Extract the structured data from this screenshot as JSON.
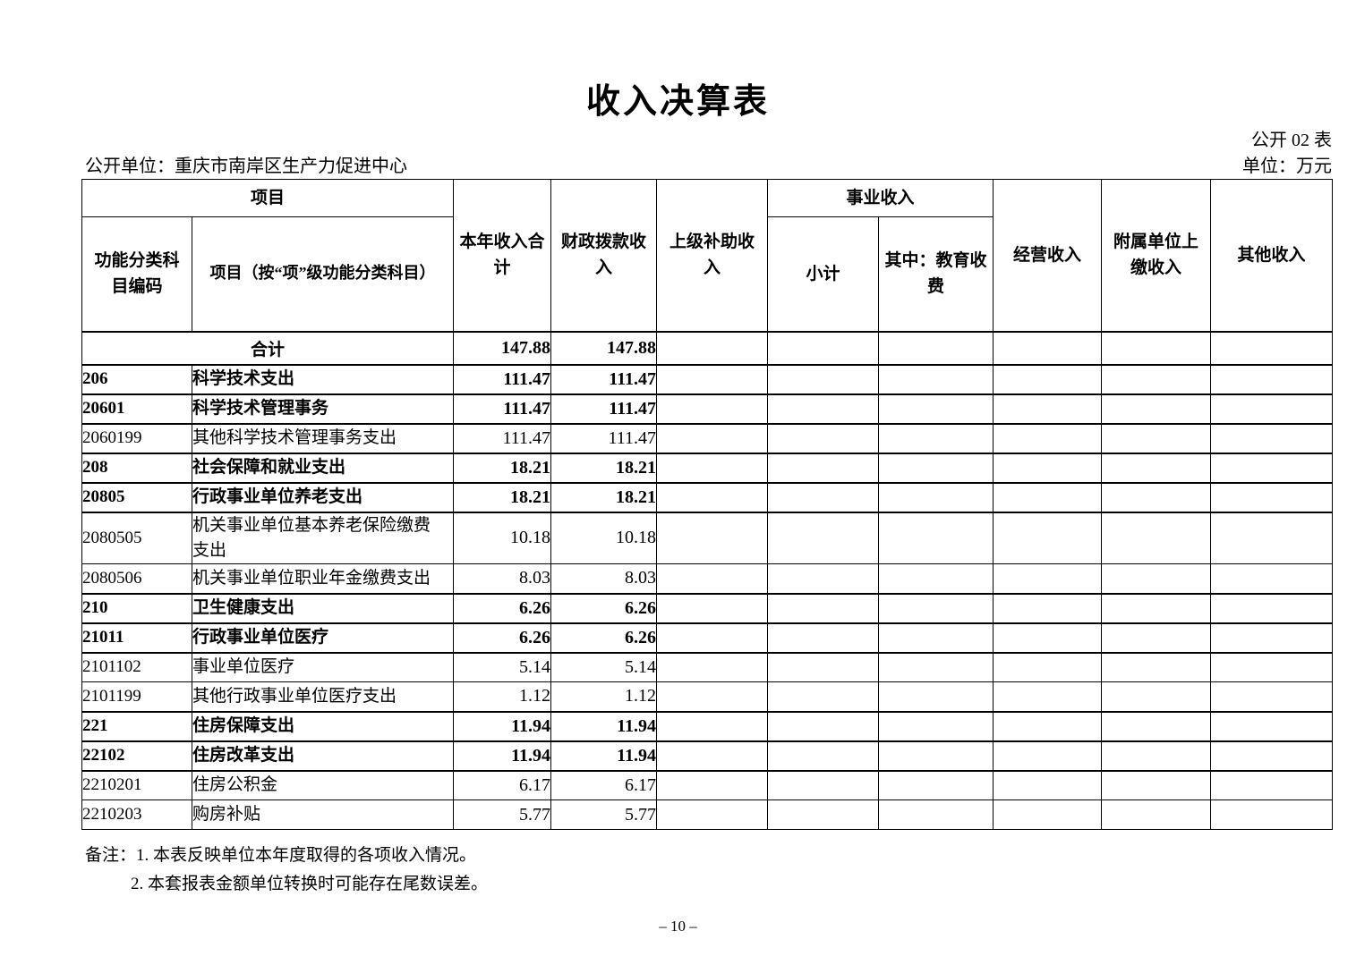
{
  "page": {
    "title": "收入决算表",
    "form_code": "公开 02 表",
    "publisher": "公开单位：重庆市南岸区生产力促进中心",
    "unit": "单位：万元",
    "page_number": "– 10 –"
  },
  "table": {
    "header": {
      "project_group": "项目",
      "code_col": "功能分类科\n目编码",
      "name_col": "项目（按“项”级功能分类科目）",
      "total_col": "本年收入合\n计",
      "fiscal_col": "财政拨款收\n入",
      "superior_col": "上级补助收\n入",
      "business_group": "事业收入",
      "business_subtotal": "小计",
      "education_fee": "其中：教育收\n费",
      "operating_col": "经营收入",
      "affiliated_col": "附属单位上\n缴收入",
      "other_col": "其他收入"
    },
    "total_row": {
      "label": "合计",
      "annual_total": "147.88",
      "fiscal": "147.88"
    },
    "rows": [
      {
        "code": "206",
        "name": "科学技术支出",
        "annual_total": "111.47",
        "fiscal": "111.47",
        "bold": true
      },
      {
        "code": "20601",
        "name": "科学技术管理事务",
        "annual_total": "111.47",
        "fiscal": "111.47",
        "bold": true
      },
      {
        "code": "2060199",
        "name": "其他科学技术管理事务支出",
        "annual_total": "111.47",
        "fiscal": "111.47",
        "bold": false
      },
      {
        "code": "208",
        "name": "社会保障和就业支出",
        "annual_total": "18.21",
        "fiscal": "18.21",
        "bold": true
      },
      {
        "code": "20805",
        "name": "行政事业单位养老支出",
        "annual_total": "18.21",
        "fiscal": "18.21",
        "bold": true
      },
      {
        "code": "2080505",
        "name": "机关事业单位基本养老保险缴费\n支出",
        "annual_total": "10.18",
        "fiscal": "10.18",
        "bold": false
      },
      {
        "code": "2080506",
        "name": "机关事业单位职业年金缴费支出",
        "annual_total": "8.03",
        "fiscal": "8.03",
        "bold": false
      },
      {
        "code": "210",
        "name": "卫生健康支出",
        "annual_total": "6.26",
        "fiscal": "6.26",
        "bold": true
      },
      {
        "code": "21011",
        "name": "行政事业单位医疗",
        "annual_total": "6.26",
        "fiscal": "6.26",
        "bold": true
      },
      {
        "code": "2101102",
        "name": "事业单位医疗",
        "annual_total": "5.14",
        "fiscal": "5.14",
        "bold": false
      },
      {
        "code": "2101199",
        "name": "其他行政事业单位医疗支出",
        "annual_total": "1.12",
        "fiscal": "1.12",
        "bold": false
      },
      {
        "code": "221",
        "name": "住房保障支出",
        "annual_total": "11.94",
        "fiscal": "11.94",
        "bold": true
      },
      {
        "code": "22102",
        "name": "住房改革支出",
        "annual_total": "11.94",
        "fiscal": "11.94",
        "bold": true
      },
      {
        "code": "2210201",
        "name": "住房公积金",
        "annual_total": "6.17",
        "fiscal": "6.17",
        "bold": false
      },
      {
        "code": "2210203",
        "name": "购房补贴",
        "annual_total": "5.77",
        "fiscal": "5.77",
        "bold": false
      }
    ],
    "notes": {
      "line1": "备注：1. 本表反映单位本年度取得的各项收入情况。",
      "line2": "2. 本套报表金额单位转换时可能存在尾数误差。"
    }
  }
}
